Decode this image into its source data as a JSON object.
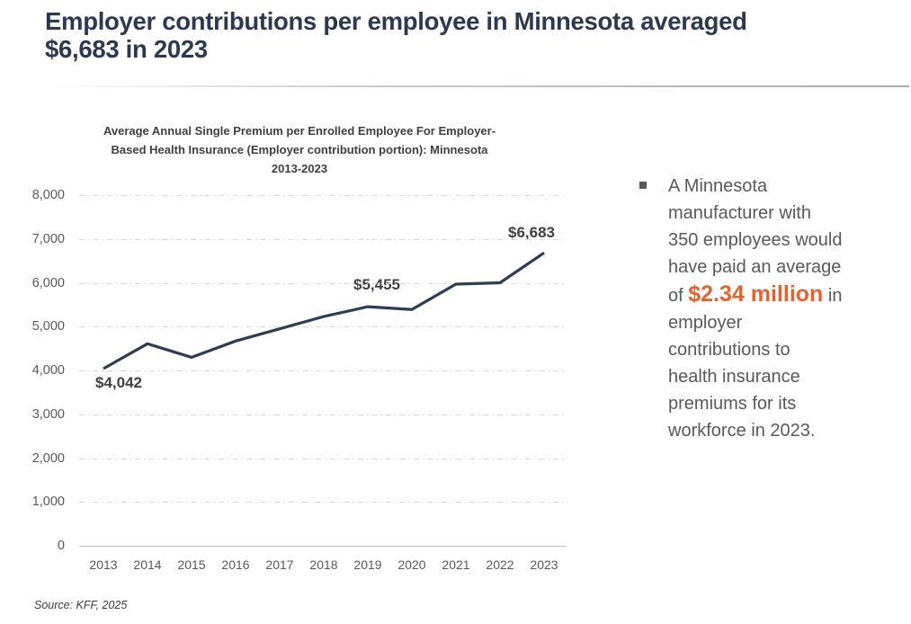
{
  "page": {
    "title": "Employer contributions per employee in Minnesota averaged\n$6,683 in 2023",
    "source": "Source: KFF, 2025"
  },
  "chart_data": {
    "type": "line",
    "title_lines": [
      "Average Annual Single Premium per Enrolled Employee For Employer-",
      "Based Health Insurance (Employer contribution portion): Minnesota",
      "2013-2023"
    ],
    "categories": [
      "2013",
      "2014",
      "2015",
      "2016",
      "2017",
      "2018",
      "2019",
      "2020",
      "2021",
      "2022",
      "2023"
    ],
    "values": [
      4042,
      4610,
      4300,
      4670,
      4950,
      5230,
      5455,
      5390,
      5970,
      6000,
      6683
    ],
    "ylim": [
      0,
      8000
    ],
    "ytick_labels": [
      "0",
      "1,000",
      "2,000",
      "3,000",
      "4,000",
      "5,000",
      "6,000",
      "7,000",
      "8,000"
    ],
    "grid": "horizontal-dash-dot",
    "legend": "none",
    "xlabel": "",
    "ylabel": "",
    "data_labels": [
      {
        "category": "2013",
        "text": "$4,042"
      },
      {
        "category": "2019",
        "text": "$5,455"
      },
      {
        "category": "2023",
        "text": "$6,683"
      }
    ]
  },
  "callout": {
    "bullet": "square",
    "text_before": "A Minnesota\nmanufacturer with\n350 employees would\nhave paid an average\nof ",
    "highlight": "$2.34 million",
    "text_after": " in\nemployer\ncontributions to\nhealth insurance\npremiums for its\nworkforce in 2023."
  },
  "colors": {
    "title": "#2B3A50",
    "line": "#2E3C54",
    "accent": "#E9622B",
    "body": "#595959",
    "axis": "#595959",
    "datalabel": "#404040",
    "grid": "#D6D6D6"
  }
}
